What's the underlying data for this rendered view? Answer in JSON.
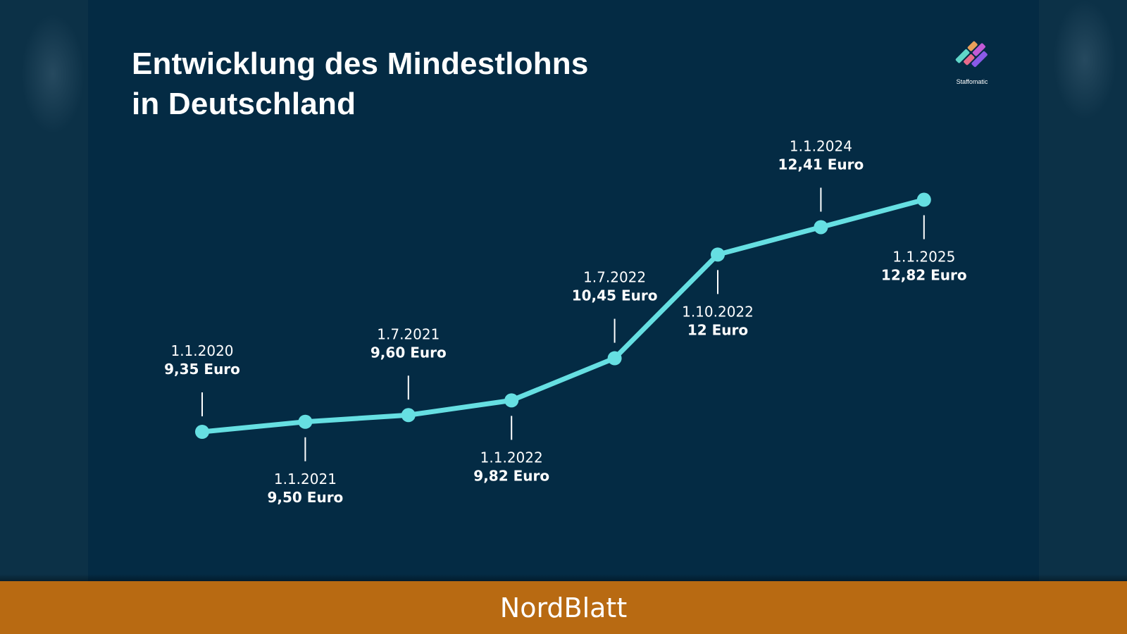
{
  "title_line1": "Entwicklung des Mindestlohns",
  "title_line2": "in Deutschland",
  "logo_text": "Staffomatic",
  "footer_text": "NordBlatt",
  "colors": {
    "background": "#042b44",
    "line": "#66dfe2",
    "text": "#ffffff",
    "footer": "#b86a12"
  },
  "chart_data": {
    "type": "line",
    "title": "Entwicklung des Mindestlohns in Deutschland",
    "categories": [
      "1.1.2020",
      "1.1.2021",
      "1.7.2021",
      "1.1.2022",
      "1.7.2022",
      "1.10.2022",
      "1.1.2024",
      "1.1.2025"
    ],
    "series": [
      {
        "values": [
          9.35,
          9.5,
          9.6,
          9.82,
          10.45,
          12.0,
          12.41,
          12.82
        ]
      }
    ],
    "data_labels": [
      "9,35 Euro",
      "9,50 Euro",
      "9,60 Euro",
      "9,82 Euro",
      "10,45 Euro",
      "12 Euro",
      "12,41 Euro",
      "12,82 Euro"
    ],
    "label_positions": [
      "above",
      "below",
      "above",
      "below",
      "above",
      "below",
      "above",
      "below"
    ],
    "grid": false,
    "axes_visible": false
  }
}
